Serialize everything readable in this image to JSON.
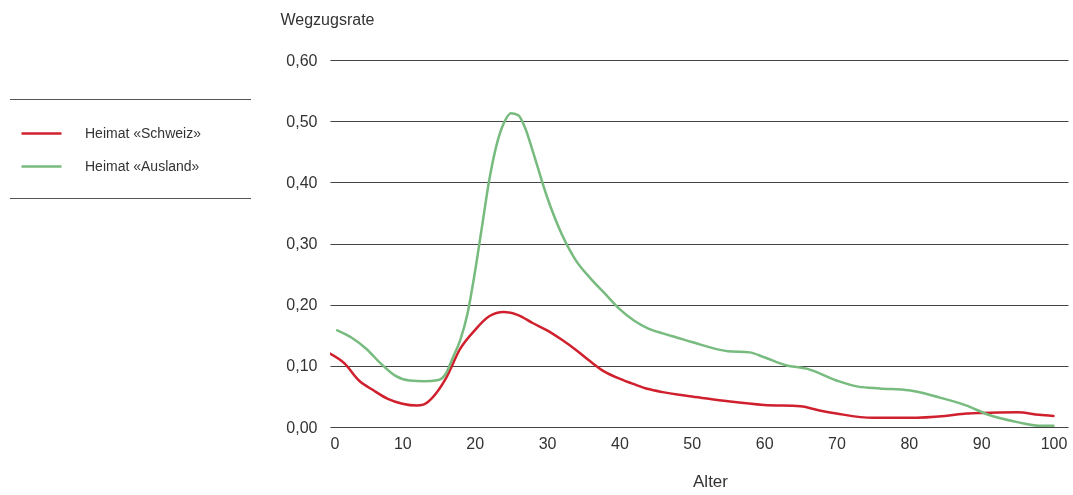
{
  "chart_data": {
    "type": "line",
    "xlabel": "Alter",
    "ylabel": "Wegzugsrate",
    "xlim": [
      0,
      102
    ],
    "xticks": [
      0,
      10,
      20,
      30,
      40,
      50,
      60,
      70,
      80,
      90,
      100
    ],
    "ylim": [
      0,
      0.6
    ],
    "yticks": [
      {
        "value": 0,
        "label": "0,00"
      },
      {
        "value": 0.1,
        "label": "0,10"
      },
      {
        "value": 0.2,
        "label": "0,20"
      },
      {
        "value": 0.3,
        "label": "0,30"
      },
      {
        "value": 0.4,
        "label": "0,40"
      },
      {
        "value": 0.5,
        "label": "0,50"
      },
      {
        "value": 0.6,
        "label": "0,60"
      }
    ],
    "grid": "y",
    "legend": "left",
    "line_style": "solid",
    "series": [
      {
        "name": "Heimat «Schweiz»",
        "color": "#d0202e",
        "x": [
          0,
          2,
          4,
          6,
          8,
          10,
          12,
          13,
          14,
          16,
          18,
          20,
          22,
          24,
          26,
          28,
          30,
          32,
          34,
          36,
          38,
          40,
          42,
          44,
          46,
          48,
          50,
          55,
          60,
          65,
          68,
          70,
          75,
          80,
          85,
          88,
          90,
          95,
          98,
          100
        ],
        "values": [
          0.12,
          0.104,
          0.076,
          0.06,
          0.046,
          0.038,
          0.035,
          0.037,
          0.046,
          0.079,
          0.128,
          0.158,
          0.181,
          0.188,
          0.183,
          0.17,
          0.158,
          0.143,
          0.126,
          0.107,
          0.09,
          0.079,
          0.07,
          0.062,
          0.057,
          0.053,
          0.05,
          0.042,
          0.036,
          0.034,
          0.026,
          0.022,
          0.015,
          0.015,
          0.018,
          0.022,
          0.023,
          0.024,
          0.02,
          0.018
        ]
      },
      {
        "name": "Heimat «Ausland»",
        "color": "#77bb7f",
        "x": [
          1,
          3,
          5,
          7,
          9,
          11,
          13,
          15,
          16,
          17,
          18,
          19,
          20,
          21,
          22,
          23,
          24,
          25,
          26,
          27,
          28,
          30,
          32,
          34,
          36,
          38,
          40,
          42,
          44,
          46,
          48,
          50,
          55,
          58,
          60,
          63,
          66,
          70,
          73,
          76,
          80,
          84,
          88,
          91,
          95,
          98,
          100
        ],
        "values": [
          0.158,
          0.146,
          0.128,
          0.104,
          0.084,
          0.076,
          0.075,
          0.077,
          0.087,
          0.114,
          0.142,
          0.185,
          0.251,
          0.327,
          0.403,
          0.46,
          0.496,
          0.513,
          0.51,
          0.488,
          0.452,
          0.376,
          0.316,
          0.272,
          0.243,
          0.218,
          0.193,
          0.174,
          0.161,
          0.153,
          0.146,
          0.139,
          0.124,
          0.122,
          0.114,
          0.101,
          0.095,
          0.076,
          0.066,
          0.063,
          0.06,
          0.049,
          0.035,
          0.02,
          0.008,
          0.002,
          0.002
        ]
      }
    ]
  }
}
